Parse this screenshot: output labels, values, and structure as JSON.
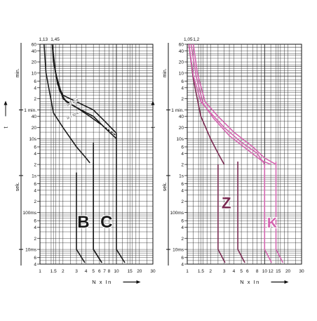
{
  "chart_data": [
    {
      "type": "line",
      "title": "",
      "xlabel": "N x In",
      "ylabel": "t",
      "x_scale": "log",
      "y_scale": "log",
      "xlim": [
        1,
        30
      ],
      "ylim_seconds": [
        0.004,
        3600
      ],
      "grid": true,
      "top_x_labels": [
        "1,13",
        "1,45"
      ],
      "x_tick_labels": [
        "1",
        "1.5",
        "2",
        "3",
        "4",
        "5",
        "6",
        "7",
        "8",
        "10",
        "15",
        "20",
        "30"
      ],
      "y_tick_labels": [
        {
          "text": "60",
          "seconds": 3600
        },
        {
          "text": "40",
          "seconds": 2400
        },
        {
          "text": "20",
          "seconds": 1200
        },
        {
          "text": "10",
          "seconds": 600
        },
        {
          "text": "6",
          "seconds": 360
        },
        {
          "text": "4",
          "seconds": 240
        },
        {
          "text": "2",
          "seconds": 120
        },
        {
          "text": "1 min.",
          "seconds": 60
        },
        {
          "text": "40",
          "seconds": 40
        },
        {
          "text": "20",
          "seconds": 20
        },
        {
          "text": "10s",
          "seconds": 10
        },
        {
          "text": "6",
          "seconds": 6
        },
        {
          "text": "4",
          "seconds": 4
        },
        {
          "text": "2",
          "seconds": 2
        },
        {
          "text": "1s",
          "seconds": 1
        },
        {
          "text": "6",
          "seconds": 0.6
        },
        {
          "text": "4",
          "seconds": 0.4
        },
        {
          "text": "2",
          "seconds": 0.2
        },
        {
          "text": "100ms",
          "seconds": 0.1
        },
        {
          "text": "6",
          "seconds": 0.06
        },
        {
          "text": "4",
          "seconds": 0.04
        },
        {
          "text": "2",
          "seconds": 0.02
        },
        {
          "text": "10ms",
          "seconds": 0.01
        },
        {
          "text": "6",
          "seconds": 0.006
        },
        {
          "text": "4",
          "seconds": 0.004
        }
      ],
      "side_labels": [
        "min.",
        "sek."
      ],
      "curve_labels": [
        "B",
        "C"
      ],
      "annotations": [
        "In ≥ 32 A",
        "In > 32 A"
      ],
      "color": "#1a1a1a",
      "series": [
        {
          "name": "",
          "x": [
            1.13,
            1.2,
            1.5,
            2,
            3,
            4,
            4.5
          ],
          "y": [
            3600,
            600,
            50,
            20,
            6,
            3,
            2.2
          ]
        },
        {
          "name": "",
          "x": [
            1.45,
            1.5,
            1.7,
            2,
            3,
            5,
            7,
            10
          ],
          "y": [
            3600,
            1500,
            300,
            150,
            100,
            60,
            30,
            14
          ]
        },
        {
          "name": "",
          "x": [
            1.45,
            1.5,
            1.8,
            2.2,
            3,
            5,
            7,
            10
          ],
          "y": [
            3600,
            1200,
            200,
            100,
            70,
            40,
            20,
            10
          ]
        },
        {
          "name": "",
          "x": [
            1.45,
            1.6,
            2,
            3,
            4.5,
            6
          ],
          "y": [
            3600,
            600,
            120,
            70,
            40,
            26
          ]
        }
      ],
      "trip_regions": [
        {
          "label": "B",
          "x_min": 3,
          "x_max": 5,
          "t_low": 0.01,
          "t_high": 2.2
        },
        {
          "label": "C",
          "x_min": 5,
          "x_max": 10,
          "t_low": 0.01,
          "t_high": 14
        }
      ]
    },
    {
      "type": "line",
      "title": "",
      "xlabel": "N x In",
      "ylabel": "t",
      "x_scale": "log",
      "y_scale": "log",
      "xlim": [
        1,
        30
      ],
      "ylim_seconds": [
        0.004,
        3600
      ],
      "grid": true,
      "top_x_labels": [
        "1,05",
        "1,2"
      ],
      "x_tick_labels": [
        "1",
        "1.5",
        "2",
        "3",
        "4",
        "5",
        "6",
        "8",
        "10",
        "12",
        "15",
        "20",
        "30"
      ],
      "side_labels": [
        "min.",
        "sek."
      ],
      "curve_labels": [
        "Z",
        "K"
      ],
      "color": "#7a2b52",
      "accent": "#d466b0",
      "series": [
        {
          "name": "",
          "x": [
            1.05,
            1.2,
            1.5,
            2,
            2.5,
            3
          ],
          "y": [
            3600,
            400,
            40,
            10,
            4,
            2
          ]
        },
        {
          "name": "",
          "x": [
            1.05,
            1.2,
            1.5,
            2,
            3,
            5,
            8,
            10
          ],
          "y": [
            3600,
            500,
            100,
            50,
            20,
            8,
            4,
            2
          ]
        },
        {
          "name": "",
          "x": [
            1.2,
            1.35,
            1.7,
            2.5,
            4,
            7,
            10,
            14
          ],
          "y": [
            3600,
            600,
            100,
            40,
            15,
            6,
            3,
            2
          ]
        }
      ],
      "trip_regions": [
        {
          "label": "Z",
          "x_min": 2.5,
          "x_max": 4.5,
          "t_low": 0.01,
          "t_high": 2
        },
        {
          "label": "K",
          "x_min": 10,
          "x_max": 14,
          "t_low": 0.01,
          "t_high": 2
        }
      ]
    }
  ]
}
